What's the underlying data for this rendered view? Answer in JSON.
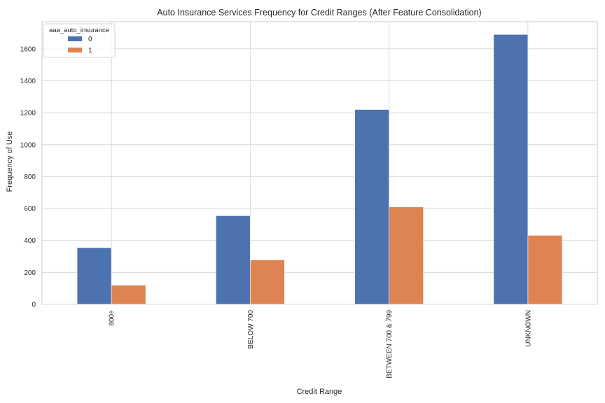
{
  "chart_data": {
    "type": "bar",
    "title": "Auto Insurance Services Frequency for Credit Ranges (After Feature Consolidation)",
    "xlabel": "Credit Range",
    "ylabel": "Frequency of Use",
    "categories": [
      "800+",
      "BELOW 700",
      "BETWEEN 700 & 799",
      "UNKNOWN"
    ],
    "series": [
      {
        "name": "0",
        "values": [
          355,
          555,
          1220,
          1690
        ],
        "color": "#4c72b0"
      },
      {
        "name": "1",
        "values": [
          120,
          278,
          610,
          432
        ],
        "color": "#dd8452"
      }
    ],
    "ylim": [
      0,
      1770
    ],
    "yticks": [
      0,
      200,
      400,
      600,
      800,
      1000,
      1200,
      1400,
      1600
    ],
    "legend": {
      "title": "aaa_auto_insurance",
      "placement": "top-left"
    },
    "grid": true
  }
}
